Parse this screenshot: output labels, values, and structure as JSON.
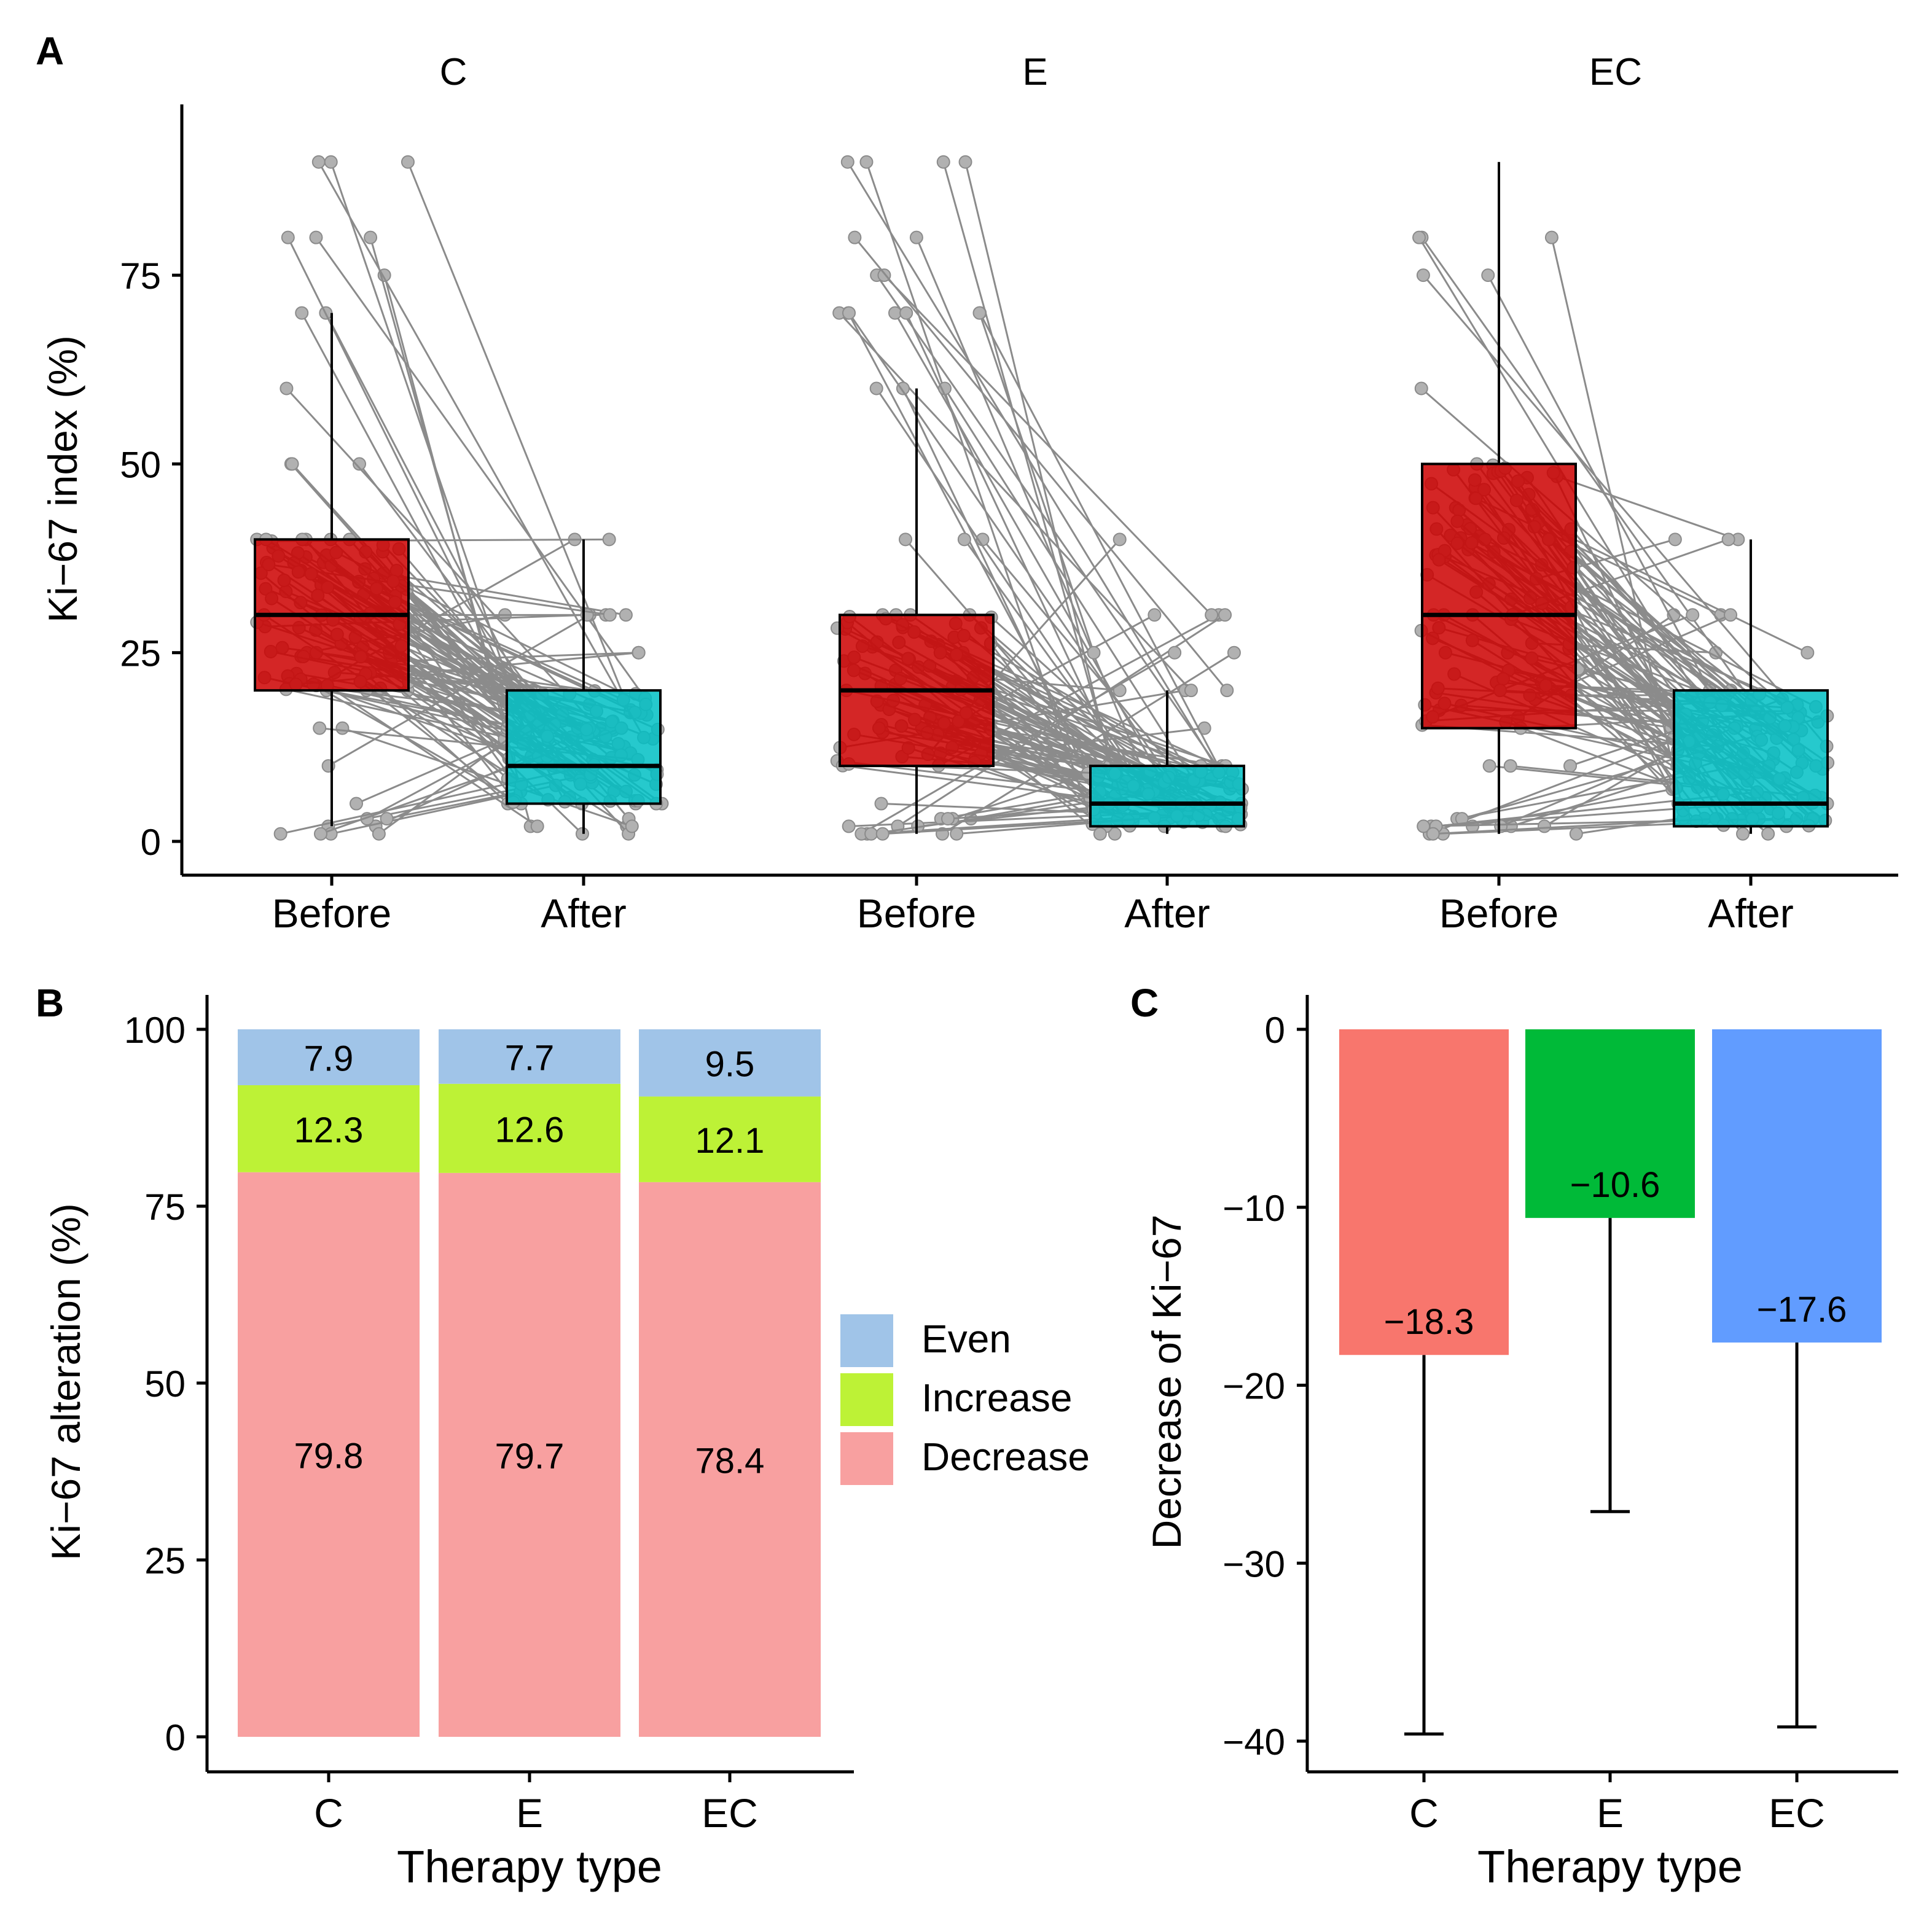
{
  "panel_labels": [
    "A",
    "B",
    "C"
  ],
  "chart_data": [
    {
      "id": "A",
      "type": "box",
      "ylabel": "Ki−67 index (%)",
      "ylim": [
        0,
        94
      ],
      "yticks": [
        0,
        25,
        50,
        75
      ],
      "x_categories": [
        "Before",
        "After"
      ],
      "box_colors": {
        "Before": "#CC0000",
        "After": "#00BFC4"
      },
      "facets": [
        {
          "name": "C",
          "before": {
            "min": 2,
            "q1": 20,
            "median": 30,
            "q3": 40,
            "max": 70
          },
          "after": {
            "min": 1,
            "q1": 5,
            "median": 10,
            "q3": 20,
            "max": 40
          }
        },
        {
          "name": "E",
          "before": {
            "min": 1,
            "q1": 10,
            "median": 20,
            "q3": 30,
            "max": 60
          },
          "after": {
            "min": 1,
            "q1": 2,
            "median": 5,
            "q3": 10,
            "max": 20
          }
        },
        {
          "name": "EC",
          "before": {
            "min": 1,
            "q1": 15,
            "median": 30,
            "q3": 50,
            "max": 90
          },
          "after": {
            "min": 1,
            "q1": 2,
            "median": 5,
            "q3": 20,
            "max": 40
          }
        }
      ]
    },
    {
      "id": "B",
      "type": "stacked_bar",
      "xlabel": "Therapy type",
      "ylabel": "Ki−67 alteration (%)",
      "ylim": [
        0,
        100
      ],
      "yticks": [
        0,
        25,
        50,
        75,
        100
      ],
      "categories": [
        "C",
        "E",
        "EC"
      ],
      "series": [
        {
          "name": "Decrease",
          "color": "#F8A0A0",
          "values": [
            79.8,
            79.7,
            78.4
          ],
          "labels": [
            "79.8",
            "79.7",
            "78.4"
          ]
        },
        {
          "name": "Increase",
          "color": "#BDF236",
          "values": [
            12.3,
            12.6,
            12.1
          ],
          "labels": [
            "12.3",
            "12.6",
            "12.1"
          ]
        },
        {
          "name": "Even",
          "color": "#A0C4E8",
          "values": [
            7.9,
            7.7,
            9.5
          ],
          "labels": [
            "7.9",
            "7.7",
            "9.5"
          ]
        }
      ],
      "legend_order": [
        "Even",
        "Increase",
        "Decrease"
      ],
      "legend_position": "right"
    },
    {
      "id": "C",
      "type": "bar",
      "xlabel": "Therapy type",
      "ylabel": "Decrease of Ki−67",
      "ylim": [
        -42,
        1.8
      ],
      "yticks": [
        0,
        -10,
        -20,
        -30,
        -40
      ],
      "ytick_labels": [
        "0",
        "−10",
        "−20",
        "−30",
        "−40"
      ],
      "categories": [
        "C",
        "E",
        "EC"
      ],
      "values": [
        -18.3,
        -10.6,
        -17.6
      ],
      "labels": [
        "−18.3",
        "−10.6",
        "−17.6"
      ],
      "error_lower": [
        -39.6,
        -27.1,
        -39.2
      ],
      "colors": [
        "#F8766D",
        "#00BA38",
        "#619CFF"
      ]
    }
  ]
}
